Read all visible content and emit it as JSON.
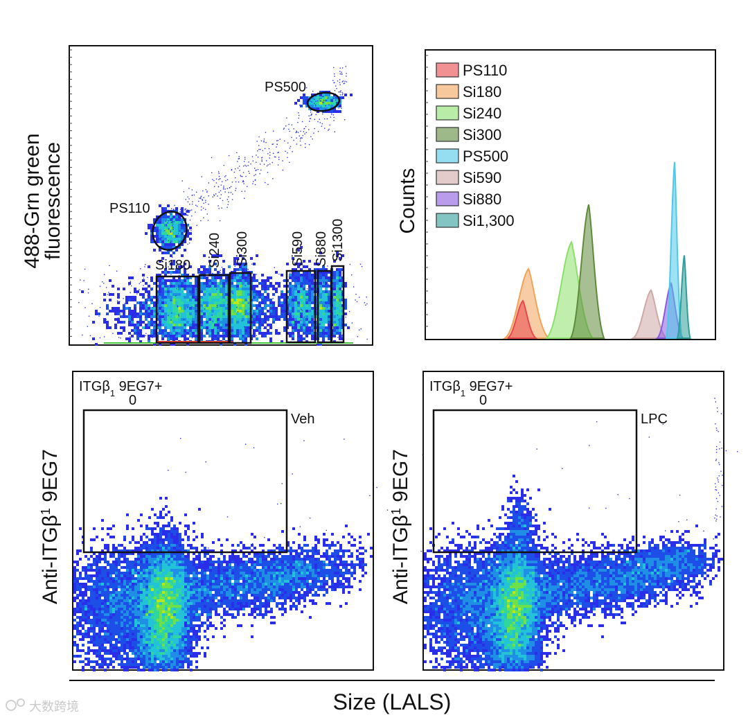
{
  "panels": {
    "top_left": {
      "ylabel_line1": "488-Grn green",
      "ylabel_line2": "fluorescence",
      "gates": [
        {
          "name": "PS110",
          "label": "PS110"
        },
        {
          "name": "PS500",
          "label": "PS500"
        },
        {
          "name": "Si180",
          "label": "Si180"
        },
        {
          "name": "Si240",
          "label": "Si240"
        },
        {
          "name": "Si300",
          "label": "Si300"
        },
        {
          "name": "Si590",
          "label": "Si590"
        },
        {
          "name": "Si880",
          "label": "Si880"
        },
        {
          "name": "Si1300",
          "label": "Si1300"
        }
      ]
    },
    "bottom_left": {
      "ylabel_main": "Anti-ITGβ",
      "ylabel_sub": "1",
      "ylabel_tail": " 9EG7",
      "gate_label_main": "ITGβ",
      "gate_label_sub": "1",
      "gate_label_tail": " 9EG7+",
      "gate_label_count": "0",
      "condition": "Veh"
    },
    "bottom_right": {
      "ylabel_main": "Anti-ITGβ",
      "ylabel_sub": "1",
      "ylabel_tail": " 9EG7",
      "gate_label_main": "ITGβ",
      "gate_label_sub": "1",
      "gate_label_tail": " 9EG7+",
      "gate_label_count": "0",
      "condition": "LPC"
    }
  },
  "shared_xlabel": "Size (LALS)",
  "watermark": "大数跨境",
  "chart_data": [
    {
      "type": "scatter",
      "title": "",
      "xlabel": "",
      "ylabel": "488-Grn green fluorescence",
      "populations": [
        "PS110",
        "PS500",
        "Si180",
        "Si240",
        "Si300",
        "Si590",
        "Si880",
        "Si1300"
      ]
    },
    {
      "type": "area",
      "title": "",
      "xlabel": "",
      "ylabel": "Counts",
      "legend_position": "top-left",
      "series": [
        {
          "name": "PS110",
          "color": "#e8474c",
          "peak": 0.28
        },
        {
          "name": "Si180",
          "color": "#f2a35a",
          "peak": 0.52
        },
        {
          "name": "Si240",
          "color": "#8be06a",
          "peak": 0.72
        },
        {
          "name": "Si300",
          "color": "#5e8a3a",
          "peak": 1.0
        },
        {
          "name": "PS500",
          "color": "#4fc8ea",
          "peak": 1.32
        },
        {
          "name": "Si590",
          "color": "#cfa8a6",
          "peak": 0.36
        },
        {
          "name": "Si880",
          "color": "#8a5ae0",
          "peak": 0.41
        },
        {
          "name": "Si1,300",
          "color": "#2e9e9a",
          "peak": 0.62
        }
      ]
    },
    {
      "type": "scatter",
      "title": "Veh",
      "xlabel": "Size (LALS)",
      "ylabel": "Anti-ITGβ1 9EG7",
      "gate": "ITGβ1 9EG7+",
      "gate_count": 0
    },
    {
      "type": "scatter",
      "title": "LPC",
      "xlabel": "Size (LALS)",
      "ylabel": "Anti-ITGβ1 9EG7",
      "gate": "ITGβ1 9EG7+",
      "gate_count": 0
    }
  ]
}
